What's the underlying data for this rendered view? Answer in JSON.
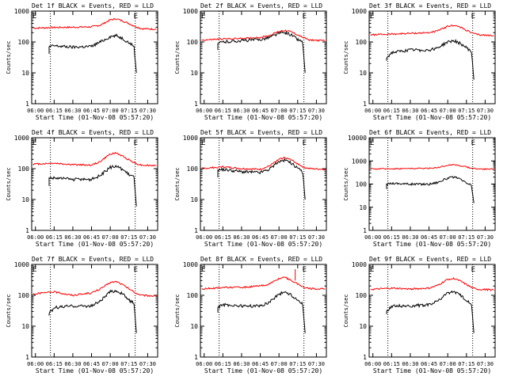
{
  "figure": {
    "colors": {
      "events": "#000000",
      "lld": "#ff0000",
      "axes": "#000000",
      "background": "#ffffff"
    }
  },
  "chart_data": [
    {
      "type": "line",
      "title": "Det 1f BLACK = Events, RED = LLD",
      "xlabel": "Start Time (01-Nov-08 05:57:20)",
      "ylabel": "Counts/sec",
      "yscale": "log",
      "ylim": [
        1,
        1000
      ],
      "y_ticks": [
        "1",
        "10",
        "100",
        "1000"
      ],
      "x_ticks": [
        "06:00",
        "06:15",
        "06:30",
        "06:45",
        "07:00",
        "07:15",
        "07:30"
      ],
      "xlim": [
        "05:57",
        "07:38"
      ],
      "dotted_markers": [
        "06:12",
        "07:20"
      ],
      "corner_marks": [
        "E",
        "E"
      ],
      "series": [
        {
          "x": [
            "05:58",
            "06:15",
            "06:30",
            "06:45",
            "06:52",
            "07:00",
            "07:05",
            "07:10",
            "07:20",
            "07:25",
            "07:37"
          ],
          "y": [
            280,
            295,
            300,
            310,
            350,
            520,
            560,
            480,
            320,
            270,
            260
          ]
        },
        {
          "x": [
            "06:11",
            "06:15",
            "06:30",
            "06:45",
            "06:52",
            "07:00",
            "07:05",
            "07:10",
            "07:15",
            "07:19",
            "07:21"
          ],
          "y": [
            70,
            75,
            68,
            72,
            100,
            150,
            160,
            130,
            95,
            75,
            10
          ]
        }
      ]
    },
    {
      "type": "line",
      "title": "Det 2f BLACK = Events, RED = LLD",
      "xlabel": "Start Time (01-Nov-08 05:57:20)",
      "ylabel": "Counts/sec",
      "yscale": "log",
      "ylim": [
        1,
        1000
      ],
      "y_ticks": [
        "1",
        "10",
        "100",
        "1000"
      ],
      "x_ticks": [
        "06:00",
        "06:15",
        "06:30",
        "06:45",
        "07:00",
        "07:15",
        "07:30"
      ],
      "xlim": [
        "05:57",
        "07:38"
      ],
      "dotted_markers": [
        "06:12",
        "07:20"
      ],
      "corner_marks": [
        "E",
        "E"
      ],
      "series": [
        {
          "x": [
            "05:58",
            "06:15",
            "06:30",
            "06:45",
            "06:52",
            "07:00",
            "07:05",
            "07:10",
            "07:20",
            "07:25",
            "07:37"
          ],
          "y": [
            115,
            125,
            130,
            140,
            160,
            220,
            240,
            210,
            135,
            115,
            110
          ]
        },
        {
          "x": [
            "06:11",
            "06:15",
            "06:30",
            "06:45",
            "06:52",
            "07:00",
            "07:05",
            "07:10",
            "07:15",
            "07:19",
            "07:21"
          ],
          "y": [
            90,
            100,
            110,
            120,
            140,
            190,
            200,
            170,
            120,
            100,
            10
          ]
        }
      ]
    },
    {
      "type": "line",
      "title": "Det 3f BLACK = Events, RED = LLD",
      "xlabel": "Start Time (01-Nov-08 05:57:20)",
      "ylabel": "Counts/sec",
      "yscale": "log",
      "ylim": [
        1,
        1000
      ],
      "y_ticks": [
        "1",
        "10",
        "100",
        "1000"
      ],
      "x_ticks": [
        "06:00",
        "06:15",
        "06:30",
        "06:45",
        "07:00",
        "07:15",
        "07:30"
      ],
      "xlim": [
        "05:57",
        "07:38"
      ],
      "dotted_markers": [
        "06:12",
        "07:20"
      ],
      "corner_marks": [
        "E",
        "E"
      ],
      "series": [
        {
          "x": [
            "05:58",
            "06:15",
            "06:30",
            "06:45",
            "06:52",
            "07:00",
            "07:05",
            "07:10",
            "07:20",
            "07:25",
            "07:37"
          ],
          "y": [
            170,
            180,
            190,
            200,
            230,
            320,
            350,
            300,
            190,
            170,
            160
          ]
        },
        {
          "x": [
            "06:11",
            "06:15",
            "06:30",
            "06:45",
            "06:52",
            "07:00",
            "07:05",
            "07:10",
            "07:15",
            "07:19",
            "07:21"
          ],
          "y": [
            30,
            45,
            55,
            55,
            65,
            100,
            110,
            90,
            65,
            50,
            6
          ]
        }
      ]
    },
    {
      "type": "line",
      "title": "Det 4f BLACK = Events, RED = LLD",
      "xlabel": "Start Time (01-Nov-08 05:57:20)",
      "ylabel": "Counts/sec",
      "yscale": "log",
      "ylim": [
        1,
        1000
      ],
      "y_ticks": [
        "1",
        "10",
        "100",
        "1000"
      ],
      "x_ticks": [
        "06:00",
        "06:15",
        "06:30",
        "06:45",
        "07:00",
        "07:15",
        "07:30"
      ],
      "xlim": [
        "05:57",
        "07:38"
      ],
      "dotted_markers": [
        "06:12",
        "07:20"
      ],
      "corner_marks": [
        "E",
        "E"
      ],
      "series": [
        {
          "x": [
            "05:58",
            "06:15",
            "06:30",
            "06:45",
            "06:52",
            "07:00",
            "07:05",
            "07:10",
            "07:20",
            "07:25",
            "07:37"
          ],
          "y": [
            140,
            150,
            135,
            130,
            170,
            300,
            320,
            250,
            150,
            130,
            125
          ]
        },
        {
          "x": [
            "06:11",
            "06:15",
            "06:30",
            "06:45",
            "06:52",
            "07:00",
            "07:05",
            "07:10",
            "07:15",
            "07:19",
            "07:21"
          ],
          "y": [
            50,
            50,
            45,
            45,
            60,
            110,
            120,
            95,
            65,
            55,
            6
          ]
        }
      ]
    },
    {
      "type": "line",
      "title": "Det 5f BLACK = Events, RED = LLD",
      "xlabel": "Start Time (01-Nov-08 05:57:20)",
      "ylabel": "Counts/sec",
      "yscale": "log",
      "ylim": [
        1,
        1000
      ],
      "y_ticks": [
        "1",
        "10",
        "100",
        "1000"
      ],
      "x_ticks": [
        "06:00",
        "06:15",
        "06:30",
        "06:45",
        "07:00",
        "07:15",
        "07:30"
      ],
      "xlim": [
        "05:57",
        "07:38"
      ],
      "dotted_markers": [
        "06:12",
        "07:20"
      ],
      "corner_marks": [
        "E",
        "E"
      ],
      "series": [
        {
          "x": [
            "05:58",
            "06:15",
            "06:30",
            "06:45",
            "06:52",
            "07:00",
            "07:05",
            "07:10",
            "07:20",
            "07:25",
            "07:37"
          ],
          "y": [
            100,
            115,
            100,
            95,
            120,
            200,
            230,
            190,
            110,
            100,
            95
          ]
        },
        {
          "x": [
            "06:11",
            "06:15",
            "06:30",
            "06:45",
            "06:52",
            "07:00",
            "07:05",
            "07:10",
            "07:15",
            "07:19",
            "07:21"
          ],
          "y": [
            90,
            95,
            80,
            75,
            95,
            170,
            190,
            150,
            100,
            80,
            10
          ]
        }
      ]
    },
    {
      "type": "line",
      "title": "Det 6f BLACK = Events, RED = LLD",
      "xlabel": "Start Time (01-Nov-08 05:57:20)",
      "ylabel": "Counts/sec",
      "yscale": "log",
      "ylim": [
        1,
        10000
      ],
      "y_ticks": [
        "1",
        "10",
        "100",
        "1000",
        "10000"
      ],
      "x_ticks": [
        "06:00",
        "06:15",
        "06:30",
        "06:45",
        "07:00",
        "07:15",
        "07:30"
      ],
      "xlim": [
        "05:57",
        "07:38"
      ],
      "dotted_markers": [
        "06:12",
        "07:20"
      ],
      "corner_marks": [
        "E",
        "E"
      ],
      "series": [
        {
          "x": [
            "05:58",
            "06:15",
            "06:30",
            "06:45",
            "06:52",
            "07:00",
            "07:05",
            "07:10",
            "07:20",
            "07:25",
            "07:37"
          ],
          "y": [
            450,
            460,
            470,
            480,
            520,
            650,
            700,
            620,
            480,
            450,
            440
          ]
        },
        {
          "x": [
            "06:11",
            "06:15",
            "06:30",
            "06:45",
            "06:52",
            "07:00",
            "07:05",
            "07:10",
            "07:15",
            "07:19",
            "07:21"
          ],
          "y": [
            100,
            110,
            100,
            100,
            120,
            180,
            200,
            160,
            110,
            90,
            15
          ]
        }
      ]
    },
    {
      "type": "line",
      "title": "Det 7f BLACK = Events, RED = LLD",
      "xlabel": "Start Time (01-Nov-08 05:57:20)",
      "ylabel": "Counts/sec",
      "yscale": "log",
      "ylim": [
        1,
        1000
      ],
      "y_ticks": [
        "1",
        "10",
        "100",
        "1000"
      ],
      "x_ticks": [
        "06:00",
        "06:15",
        "06:30",
        "06:45",
        "07:00",
        "07:15",
        "07:30"
      ],
      "xlim": [
        "05:57",
        "07:38"
      ],
      "dotted_markers": [
        "06:12",
        "07:20"
      ],
      "corner_marks": [
        "E",
        "E"
      ],
      "series": [
        {
          "x": [
            "05:58",
            "06:15",
            "06:30",
            "06:45",
            "06:52",
            "07:00",
            "07:05",
            "07:10",
            "07:20",
            "07:25",
            "07:37"
          ],
          "y": [
            110,
            130,
            100,
            120,
            160,
            260,
            280,
            220,
            120,
            100,
            95
          ]
        },
        {
          "x": [
            "06:11",
            "06:15",
            "06:30",
            "06:45",
            "06:52",
            "07:00",
            "07:05",
            "07:10",
            "07:15",
            "07:19",
            "07:21"
          ],
          "y": [
            25,
            40,
            45,
            45,
            65,
            130,
            140,
            110,
            70,
            55,
            6
          ]
        }
      ]
    },
    {
      "type": "line",
      "title": "Det 8f BLACK = Events, RED = LLD",
      "xlabel": "Start Time (01-Nov-08 05:57:20)",
      "ylabel": "Counts/sec",
      "yscale": "log",
      "ylim": [
        1,
        1000
      ],
      "y_ticks": [
        "1",
        "10",
        "100",
        "1000"
      ],
      "x_ticks": [
        "06:00",
        "06:15",
        "06:30",
        "06:45",
        "07:00",
        "07:15",
        "07:30"
      ],
      "xlim": [
        "05:57",
        "07:38"
      ],
      "dotted_markers": [
        "06:12",
        "07:20"
      ],
      "corner_marks": [
        "E",
        "E"
      ],
      "series": [
        {
          "x": [
            "05:58",
            "06:15",
            "06:30",
            "06:45",
            "06:52",
            "07:00",
            "07:05",
            "07:10",
            "07:20",
            "07:25",
            "07:37"
          ],
          "y": [
            160,
            180,
            180,
            200,
            230,
            350,
            380,
            300,
            180,
            165,
            160
          ]
        },
        {
          "x": [
            "06:11",
            "06:15",
            "06:30",
            "06:45",
            "06:52",
            "07:00",
            "07:05",
            "07:10",
            "07:15",
            "07:19",
            "07:21"
          ],
          "y": [
            40,
            50,
            45,
            45,
            60,
            110,
            130,
            100,
            70,
            55,
            6
          ]
        }
      ],
      "annotations": [
        {
          "series": 0,
          "x": "07:13",
          "y": 700,
          "label": ""
        }
      ]
    },
    {
      "type": "line",
      "title": "Det 9f BLACK = Events, RED = LLD",
      "xlabel": "Start Time (01-Nov-08 05:57:20)",
      "ylabel": "Counts/sec",
      "yscale": "log",
      "ylim": [
        1,
        1000
      ],
      "y_ticks": [
        "1",
        "10",
        "100",
        "1000"
      ],
      "x_ticks": [
        "06:00",
        "06:15",
        "06:30",
        "06:45",
        "07:00",
        "07:15",
        "07:30"
      ],
      "xlim": [
        "05:57",
        "07:38"
      ],
      "dotted_markers": [
        "06:12",
        "07:20"
      ],
      "corner_marks": [
        "E",
        "E"
      ],
      "series": [
        {
          "x": [
            "05:58",
            "06:15",
            "06:30",
            "06:45",
            "06:52",
            "07:00",
            "07:05",
            "07:10",
            "07:20",
            "07:25",
            "07:37"
          ],
          "y": [
            155,
            170,
            160,
            170,
            210,
            330,
            350,
            290,
            170,
            155,
            150
          ]
        },
        {
          "x": [
            "06:11",
            "06:15",
            "06:30",
            "06:45",
            "06:52",
            "07:00",
            "07:05",
            "07:10",
            "07:15",
            "07:19",
            "07:21"
          ],
          "y": [
            30,
            45,
            45,
            50,
            65,
            120,
            130,
            100,
            70,
            55,
            6
          ]
        }
      ]
    }
  ]
}
